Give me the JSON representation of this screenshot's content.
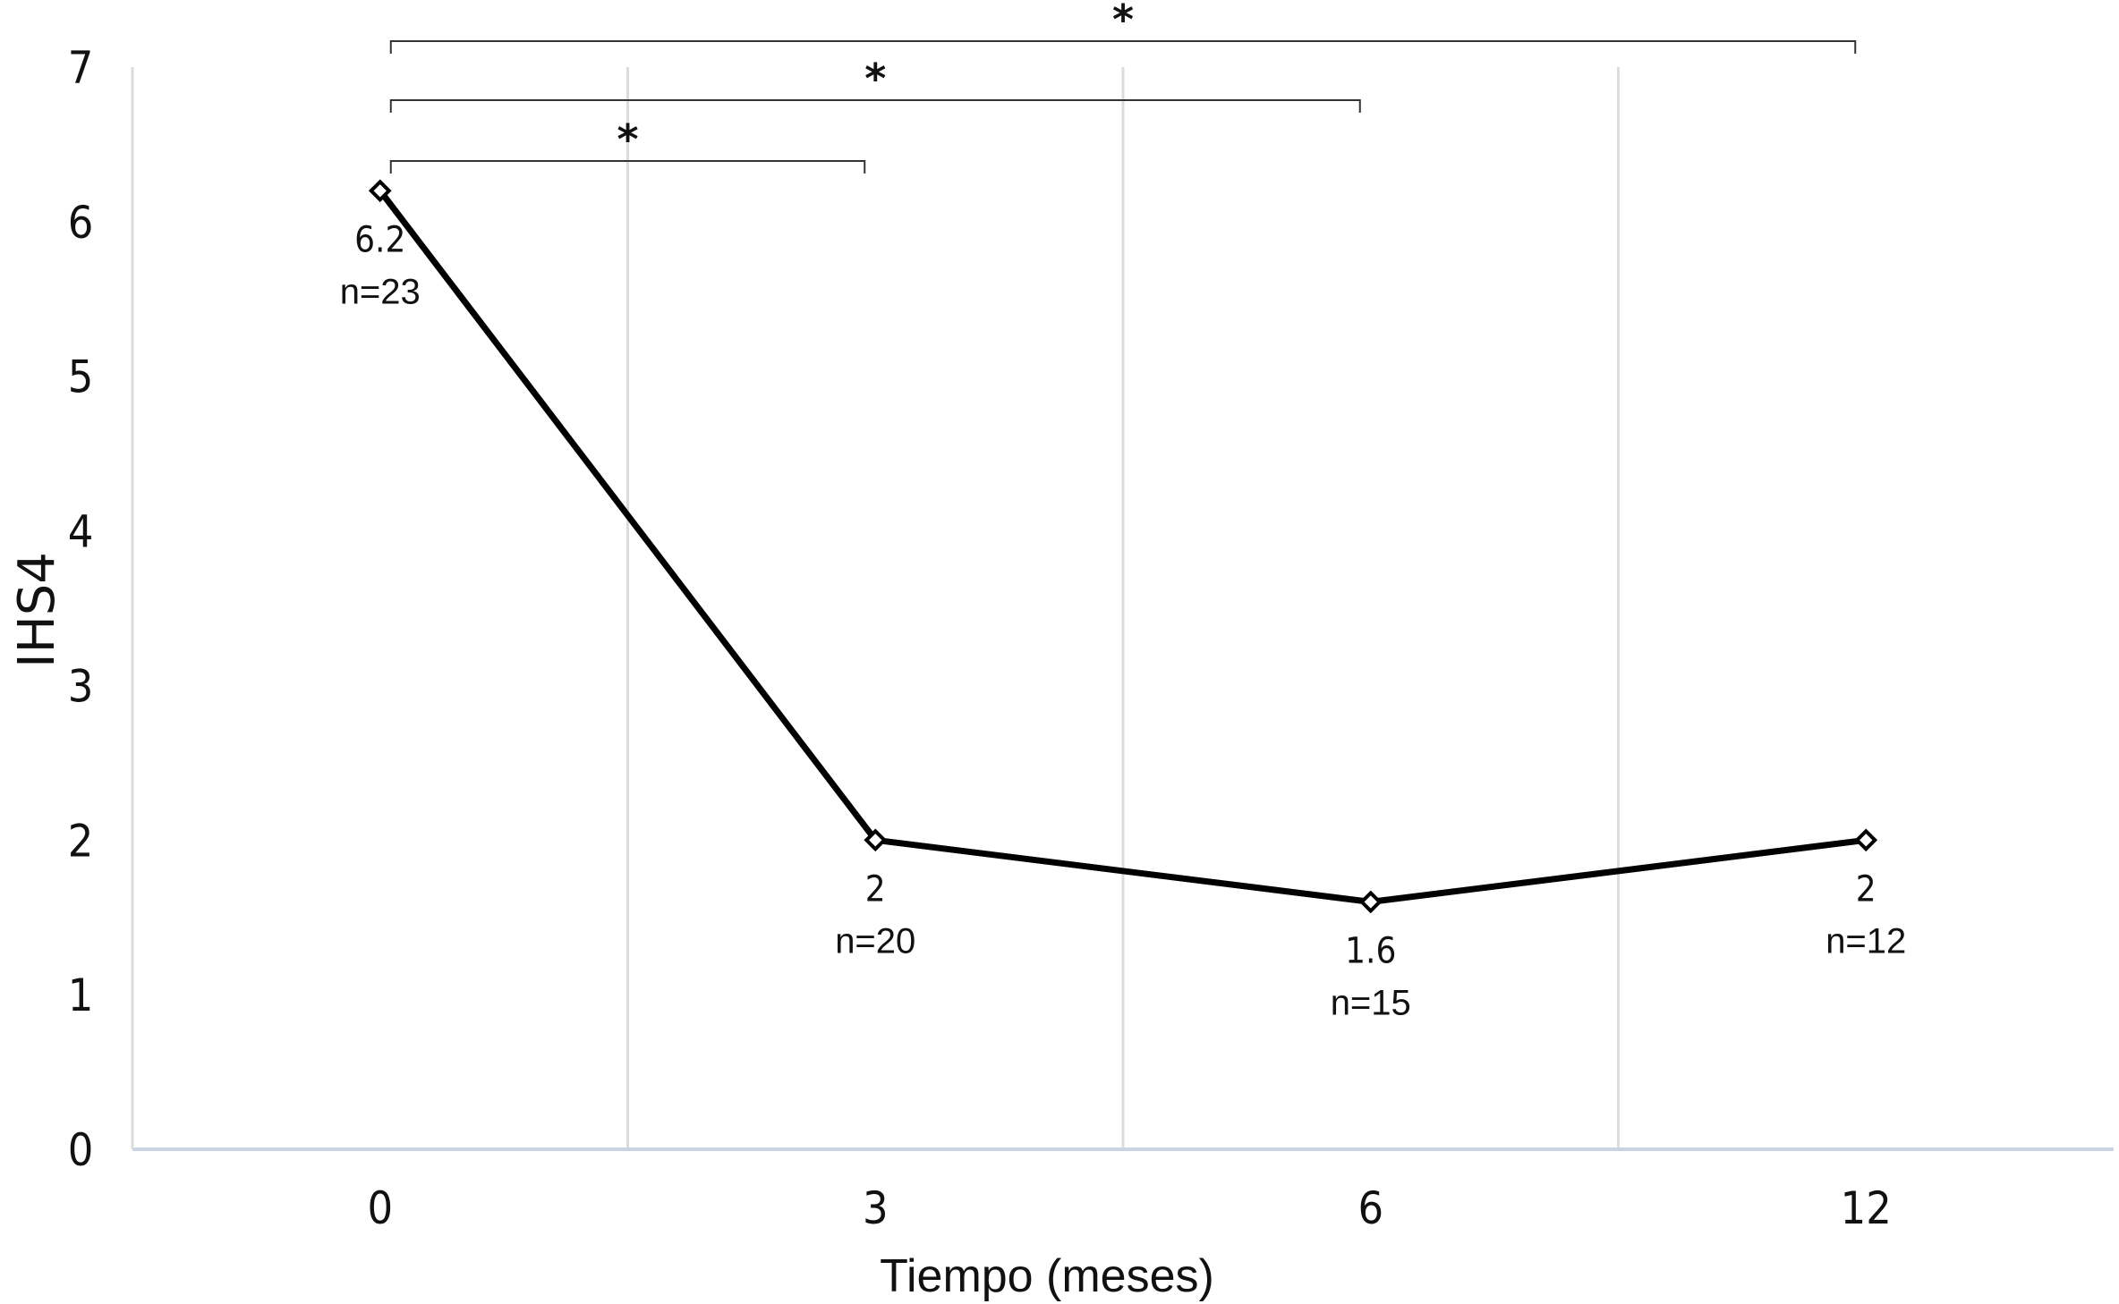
{
  "chart_data": {
    "type": "line",
    "xlabel": "Tiempo (meses)",
    "ylabel": "IHS4",
    "categories": [
      "0",
      "3",
      "6",
      "12"
    ],
    "values": [
      6.2,
      2,
      1.6,
      2
    ],
    "value_labels": [
      "6.2",
      "2",
      "1.6",
      "2"
    ],
    "n_labels": [
      "n=23",
      "n=20",
      "n=15",
      "n=12"
    ],
    "ylim": [
      0,
      7
    ],
    "yticks": [
      "0",
      "1",
      "2",
      "3",
      "4",
      "5",
      "6",
      "7"
    ],
    "grid": "vertical",
    "line_color": "#000000",
    "marker": "diamond",
    "significance": [
      {
        "from": "0",
        "to": "3",
        "label": "*"
      },
      {
        "from": "0",
        "to": "6",
        "label": "*"
      },
      {
        "from": "0",
        "to": "12",
        "label": "*"
      }
    ]
  }
}
